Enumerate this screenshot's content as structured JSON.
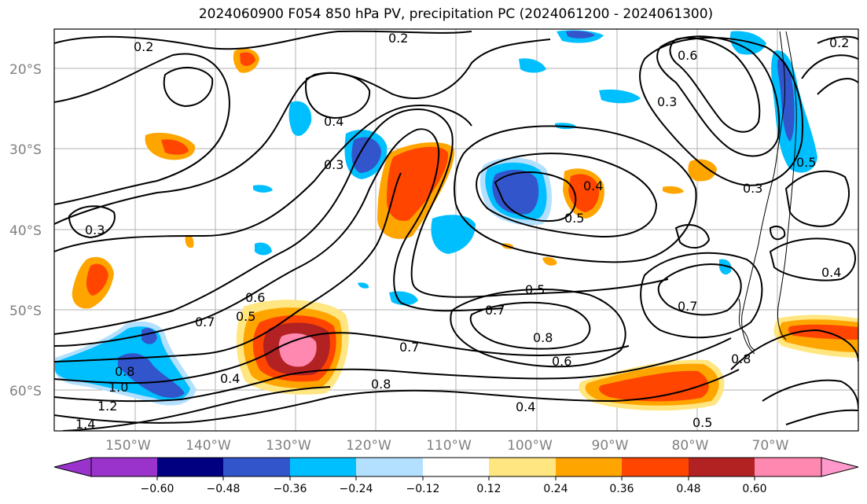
{
  "title": "2024060900 F054 850 hPa PV, precipitation PC (2024061200 - 2024061300)",
  "map": {
    "latitude_labels": [
      "20°S",
      "30°S",
      "40°S",
      "50°S",
      "60°S"
    ],
    "longitude_labels": [
      "150°W",
      "140°W",
      "130°W",
      "120°W",
      "110°W",
      "100°W",
      "90°W",
      "80°W",
      "70°W"
    ],
    "contour_labels": [
      "0.2",
      "0.2",
      "0.2",
      "0.3",
      "0.3",
      "0.3",
      "0.3",
      "0.4",
      "0.4",
      "0.4",
      "0.4",
      "0.4",
      "0.5",
      "0.5",
      "0.5",
      "0.5",
      "0.5",
      "0.6",
      "0.6",
      "0.6",
      "0.7",
      "0.7",
      "0.7",
      "0.7",
      "0.8",
      "0.8",
      "0.8",
      "0.8",
      "1.0",
      "1.2",
      "1.4"
    ]
  },
  "colorbar": {
    "tick_labels": [
      "−0.60",
      "−0.48",
      "−0.36",
      "−0.24",
      "−0.12",
      "0.12",
      "0.24",
      "0.36",
      "0.48",
      "0.60"
    ],
    "colors": [
      "#9933cc",
      "#000080",
      "#3355cc",
      "#00bfff",
      "#b3e0ff",
      "#ffffff",
      "#ffe680",
      "#ffa500",
      "#ff4500",
      "#b22222",
      "#ff88b0",
      "#ff99cc"
    ]
  }
}
